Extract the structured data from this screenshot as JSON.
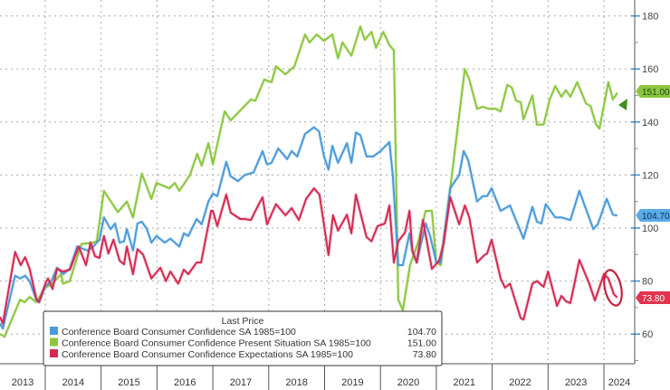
{
  "chart_data": {
    "type": "line",
    "title": "",
    "xlabel": "",
    "ylabel": "",
    "x_tick_labels": [
      "2013",
      "2014",
      "2015",
      "2016",
      "2017",
      "2018",
      "2019",
      "2020",
      "2021",
      "2022",
      "2023",
      "2024"
    ],
    "y_ticks": [
      60,
      80,
      100,
      120,
      140,
      160,
      180
    ],
    "xlim": [
      2013.19,
      2024.54
    ],
    "ylim": [
      49.5,
      186
    ],
    "y_axis_side": "right",
    "grid": true,
    "legend": {
      "placement": "bottom-left",
      "title": "Last Price"
    },
    "series": [
      {
        "name": "Conference Board Consumer Confidence SA 1985=100",
        "last_value": "104.70",
        "color": "#4a9ad8",
        "points": [
          [
            2013.19,
            64
          ],
          [
            2013.24,
            62
          ],
          [
            2013.46,
            82
          ],
          [
            2013.55,
            81
          ],
          [
            2013.64,
            82
          ],
          [
            2013.72,
            80
          ],
          [
            2013.84,
            73
          ],
          [
            2013.89,
            72
          ],
          [
            2014.0,
            78
          ],
          [
            2014.11,
            80
          ],
          [
            2014.21,
            85
          ],
          [
            2014.32,
            82.6
          ],
          [
            2014.44,
            84.6
          ],
          [
            2014.57,
            93
          ],
          [
            2014.76,
            91.5
          ],
          [
            2014.86,
            93
          ],
          [
            2014.97,
            95.6
          ],
          [
            2015.05,
            104
          ],
          [
            2015.17,
            99.6
          ],
          [
            2015.25,
            101.7
          ],
          [
            2015.33,
            94.5
          ],
          [
            2015.41,
            95
          ],
          [
            2015.46,
            99.6
          ],
          [
            2015.57,
            91.5
          ],
          [
            2015.65,
            101.7
          ],
          [
            2015.73,
            102.4
          ],
          [
            2015.82,
            99.6
          ],
          [
            2015.9,
            94.5
          ],
          [
            2015.99,
            97
          ],
          [
            2016.14,
            94.5
          ],
          [
            2016.24,
            96
          ],
          [
            2016.4,
            93
          ],
          [
            2016.48,
            98
          ],
          [
            2016.56,
            97
          ],
          [
            2016.71,
            103.4
          ],
          [
            2016.8,
            101.4
          ],
          [
            2016.92,
            110
          ],
          [
            2017.0,
            113
          ],
          [
            2017.08,
            112
          ],
          [
            2017.24,
            125
          ],
          [
            2017.32,
            119.5
          ],
          [
            2017.45,
            117.7
          ],
          [
            2017.57,
            120
          ],
          [
            2017.73,
            121
          ],
          [
            2017.89,
            129
          ],
          [
            2017.97,
            124
          ],
          [
            2018.05,
            124.6
          ],
          [
            2018.17,
            130
          ],
          [
            2018.33,
            126
          ],
          [
            2018.41,
            129
          ],
          [
            2018.51,
            127
          ],
          [
            2018.65,
            135.5
          ],
          [
            2018.81,
            138
          ],
          [
            2018.9,
            136.5
          ],
          [
            2018.99,
            127
          ],
          [
            2019.07,
            122
          ],
          [
            2019.14,
            131
          ],
          [
            2019.24,
            124.6
          ],
          [
            2019.4,
            132
          ],
          [
            2019.48,
            124.6
          ],
          [
            2019.56,
            136
          ],
          [
            2019.64,
            135
          ],
          [
            2019.75,
            127
          ],
          [
            2019.87,
            127
          ],
          [
            2020.0,
            129
          ],
          [
            2020.16,
            132.4
          ],
          [
            2020.22,
            120
          ],
          [
            2020.32,
            86
          ],
          [
            2020.4,
            86
          ],
          [
            2020.52,
            98
          ],
          [
            2020.57,
            91.5
          ],
          [
            2020.65,
            87
          ],
          [
            2020.81,
            101.7
          ],
          [
            2020.89,
            97
          ],
          [
            2021.0,
            87
          ],
          [
            2021.08,
            87
          ],
          [
            2021.25,
            115
          ],
          [
            2021.41,
            120
          ],
          [
            2021.49,
            129
          ],
          [
            2021.57,
            125.6
          ],
          [
            2021.73,
            110
          ],
          [
            2021.83,
            112
          ],
          [
            2021.91,
            112
          ],
          [
            2021.99,
            115
          ],
          [
            2022.15,
            106.5
          ],
          [
            2022.32,
            108.5
          ],
          [
            2022.56,
            96
          ],
          [
            2022.72,
            108
          ],
          [
            2022.8,
            102.4
          ],
          [
            2022.88,
            101.7
          ],
          [
            2022.96,
            109
          ],
          [
            2023.13,
            104
          ],
          [
            2023.24,
            104
          ],
          [
            2023.4,
            103
          ],
          [
            2023.56,
            114
          ],
          [
            2023.81,
            99.6
          ],
          [
            2023.89,
            101.4
          ],
          [
            2024.05,
            111
          ],
          [
            2024.16,
            105
          ],
          [
            2024.24,
            104.7
          ]
        ]
      },
      {
        "name": "Conference Board Consumer Confidence Present Situation SA 1985=100",
        "last_value": "151.00",
        "color": "#8cc63f",
        "points": [
          [
            2013.19,
            60
          ],
          [
            2013.27,
            59
          ],
          [
            2013.55,
            73
          ],
          [
            2013.63,
            72
          ],
          [
            2013.72,
            74
          ],
          [
            2013.84,
            72
          ],
          [
            2014.0,
            77.5
          ],
          [
            2014.13,
            79
          ],
          [
            2014.28,
            82.6
          ],
          [
            2014.32,
            79
          ],
          [
            2014.44,
            80
          ],
          [
            2014.57,
            89
          ],
          [
            2014.65,
            94
          ],
          [
            2014.86,
            94.5
          ],
          [
            2014.92,
            95
          ],
          [
            2015.05,
            114
          ],
          [
            2015.3,
            106
          ],
          [
            2015.46,
            110
          ],
          [
            2015.57,
            104
          ],
          [
            2015.73,
            120.5
          ],
          [
            2015.9,
            111
          ],
          [
            2015.99,
            117
          ],
          [
            2016.22,
            115
          ],
          [
            2016.32,
            117
          ],
          [
            2016.4,
            114
          ],
          [
            2016.59,
            120
          ],
          [
            2016.72,
            128
          ],
          [
            2016.8,
            123.5
          ],
          [
            2016.92,
            132
          ],
          [
            2017.0,
            124
          ],
          [
            2017.21,
            144
          ],
          [
            2017.32,
            140.6
          ],
          [
            2017.52,
            145
          ],
          [
            2017.68,
            148.5
          ],
          [
            2017.76,
            148
          ],
          [
            2017.92,
            156
          ],
          [
            2018.05,
            155
          ],
          [
            2018.13,
            161
          ],
          [
            2018.3,
            158
          ],
          [
            2018.46,
            161
          ],
          [
            2018.65,
            173
          ],
          [
            2018.73,
            170
          ],
          [
            2018.86,
            173
          ],
          [
            2018.99,
            170.6
          ],
          [
            2019.14,
            173
          ],
          [
            2019.24,
            164
          ],
          [
            2019.32,
            170
          ],
          [
            2019.48,
            165
          ],
          [
            2019.64,
            176
          ],
          [
            2019.72,
            171
          ],
          [
            2019.84,
            174
          ],
          [
            2019.92,
            168
          ],
          [
            2020.05,
            174
          ],
          [
            2020.16,
            169
          ],
          [
            2020.24,
            167
          ],
          [
            2020.32,
            73
          ],
          [
            2020.4,
            69
          ],
          [
            2020.53,
            86
          ],
          [
            2020.68,
            95
          ],
          [
            2020.81,
            106.5
          ],
          [
            2020.92,
            106.5
          ],
          [
            2021.0,
            87
          ],
          [
            2021.08,
            86
          ],
          [
            2021.25,
            115
          ],
          [
            2021.51,
            160
          ],
          [
            2021.59,
            156
          ],
          [
            2021.73,
            145
          ],
          [
            2021.83,
            145.7
          ],
          [
            2021.94,
            145
          ],
          [
            2022.07,
            145
          ],
          [
            2022.15,
            144
          ],
          [
            2022.27,
            154
          ],
          [
            2022.35,
            153
          ],
          [
            2022.43,
            148
          ],
          [
            2022.51,
            147.5
          ],
          [
            2022.56,
            141
          ],
          [
            2022.72,
            150
          ],
          [
            2022.8,
            139
          ],
          [
            2022.92,
            139
          ],
          [
            2023.03,
            148.5
          ],
          [
            2023.13,
            153.5
          ],
          [
            2023.24,
            149.5
          ],
          [
            2023.32,
            152
          ],
          [
            2023.4,
            149.5
          ],
          [
            2023.52,
            155
          ],
          [
            2023.68,
            147
          ],
          [
            2023.76,
            146
          ],
          [
            2023.86,
            139
          ],
          [
            2023.92,
            137.5
          ],
          [
            2024.08,
            155
          ],
          [
            2024.16,
            148.5
          ],
          [
            2024.24,
            151
          ]
        ]
      },
      {
        "name": "Conference Board Consumer Confidence Expectations SA 1985=100",
        "last_value": "73.80",
        "color": "#d42a52",
        "points": [
          [
            2013.19,
            66.5
          ],
          [
            2013.24,
            64
          ],
          [
            2013.46,
            91
          ],
          [
            2013.56,
            86
          ],
          [
            2013.64,
            89
          ],
          [
            2013.72,
            84.6
          ],
          [
            2013.84,
            73.4
          ],
          [
            2013.89,
            72
          ],
          [
            2014.0,
            79
          ],
          [
            2014.05,
            81
          ],
          [
            2014.13,
            77
          ],
          [
            2014.21,
            84.6
          ],
          [
            2014.32,
            83.6
          ],
          [
            2014.44,
            84.3
          ],
          [
            2014.6,
            93
          ],
          [
            2014.73,
            86
          ],
          [
            2014.81,
            94.5
          ],
          [
            2014.89,
            89.4
          ],
          [
            2014.97,
            88.7
          ],
          [
            2015.05,
            97
          ],
          [
            2015.13,
            90.4
          ],
          [
            2015.22,
            95.6
          ],
          [
            2015.33,
            87.7
          ],
          [
            2015.41,
            86.3
          ],
          [
            2015.46,
            93
          ],
          [
            2015.57,
            82.6
          ],
          [
            2015.65,
            92
          ],
          [
            2015.75,
            90
          ],
          [
            2015.9,
            81
          ],
          [
            2016.06,
            85
          ],
          [
            2016.16,
            80
          ],
          [
            2016.24,
            83.6
          ],
          [
            2016.38,
            79
          ],
          [
            2016.48,
            84.3
          ],
          [
            2016.56,
            82.6
          ],
          [
            2016.71,
            87
          ],
          [
            2016.79,
            87
          ],
          [
            2016.97,
            106.5
          ],
          [
            2017.0,
            106.5
          ],
          [
            2017.08,
            100.7
          ],
          [
            2017.24,
            112.6
          ],
          [
            2017.32,
            105.8
          ],
          [
            2017.49,
            103.4
          ],
          [
            2017.57,
            103.4
          ],
          [
            2017.68,
            103
          ],
          [
            2017.81,
            108.5
          ],
          [
            2017.89,
            111.6
          ],
          [
            2017.97,
            101.4
          ],
          [
            2018.13,
            109
          ],
          [
            2018.3,
            104.8
          ],
          [
            2018.41,
            107.5
          ],
          [
            2018.54,
            103
          ],
          [
            2018.67,
            111
          ],
          [
            2018.81,
            115
          ],
          [
            2018.91,
            112.6
          ],
          [
            2019.07,
            89.8
          ],
          [
            2019.15,
            104.8
          ],
          [
            2019.24,
            99
          ],
          [
            2019.4,
            105
          ],
          [
            2019.48,
            98
          ],
          [
            2019.56,
            112.6
          ],
          [
            2019.75,
            96.6
          ],
          [
            2019.84,
            95
          ],
          [
            2019.95,
            100.7
          ],
          [
            2020.08,
            101.7
          ],
          [
            2020.16,
            108.5
          ],
          [
            2020.24,
            87
          ],
          [
            2020.32,
            95
          ],
          [
            2020.44,
            98.3
          ],
          [
            2020.52,
            106.5
          ],
          [
            2020.57,
            91.5
          ],
          [
            2020.65,
            87
          ],
          [
            2020.76,
            103
          ],
          [
            2020.92,
            84.6
          ],
          [
            2021.05,
            87.7
          ],
          [
            2021.13,
            94
          ],
          [
            2021.25,
            111.6
          ],
          [
            2021.41,
            101.4
          ],
          [
            2021.51,
            108.5
          ],
          [
            2021.59,
            104
          ],
          [
            2021.73,
            87
          ],
          [
            2021.86,
            89.8
          ],
          [
            2021.91,
            90.4
          ],
          [
            2021.99,
            95.6
          ],
          [
            2022.15,
            81
          ],
          [
            2022.23,
            77.5
          ],
          [
            2022.32,
            79
          ],
          [
            2022.51,
            66
          ],
          [
            2022.56,
            65.5
          ],
          [
            2022.72,
            79
          ],
          [
            2022.8,
            80
          ],
          [
            2022.92,
            77.8
          ],
          [
            2023.0,
            83.6
          ],
          [
            2023.16,
            70.6
          ],
          [
            2023.24,
            74.4
          ],
          [
            2023.32,
            72.4
          ],
          [
            2023.4,
            71.7
          ],
          [
            2023.56,
            88
          ],
          [
            2023.73,
            79.5
          ],
          [
            2023.84,
            72.7
          ],
          [
            2024.0,
            82.6
          ],
          [
            2024.08,
            81
          ],
          [
            2024.18,
            75
          ],
          [
            2024.24,
            73.8
          ]
        ]
      }
    ],
    "annotations": [
      "red-circle-around-latest-expectations",
      "green-triangle-marker-present-situation"
    ]
  }
}
